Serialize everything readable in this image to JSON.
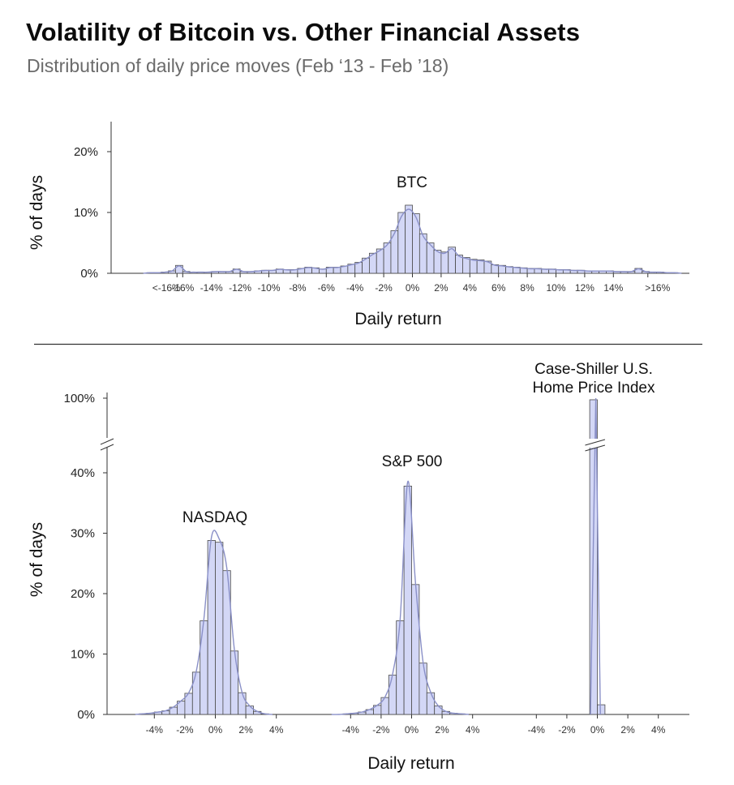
{
  "title": "Volatility of Bitcoin vs. Other Financial Assets",
  "subtitle": "Distribution of daily price moves (Feb ‘13 - Feb ’18)",
  "colors": {
    "bar_fill": "#d3d7f6",
    "bar_stroke": "#4a4a4a",
    "density_line": "#8a90c8",
    "axis": "#333333",
    "title": "#0b0b0b",
    "subtitle": "#6b6b6b"
  },
  "chart_data": [
    {
      "type": "bar",
      "panel": "top",
      "series_label": "BTC",
      "ylabel": "% of days",
      "xlabel": "Daily return",
      "y_ticks": [
        "0%",
        "10%",
        "20%"
      ],
      "ylim": [
        0,
        25
      ],
      "x_tick_labels": [
        "<-16%",
        "-16%",
        "-14%",
        "-12%",
        "-10%",
        "-8%",
        "-6%",
        "-4%",
        "-2%",
        "0%",
        "2%",
        "4%",
        "6%",
        "8%",
        "10%",
        "12%",
        "14%",
        ">16%"
      ],
      "bin_width": 0.5,
      "bin_centers": [
        -18.75,
        -18.25,
        -17.75,
        -17.25,
        -16.75,
        -16.25,
        -15.75,
        -15.25,
        -14.75,
        -14.25,
        -13.75,
        -13.25,
        -12.75,
        -12.25,
        -11.75,
        -11.25,
        -10.75,
        -10.25,
        -9.75,
        -9.25,
        -8.75,
        -8.25,
        -7.75,
        -7.25,
        -6.75,
        -6.25,
        -5.75,
        -5.25,
        -4.75,
        -4.25,
        -3.75,
        -3.25,
        -2.75,
        -2.25,
        -1.75,
        -1.25,
        -0.75,
        -0.25,
        0.25,
        0.75,
        1.25,
        1.75,
        2.25,
        2.75,
        3.25,
        3.75,
        4.25,
        4.75,
        5.25,
        5.75,
        6.25,
        6.75,
        7.25,
        7.75,
        8.25,
        8.75,
        9.25,
        9.75,
        10.25,
        10.75,
        11.25,
        11.75,
        12.25,
        12.75,
        13.25,
        13.75,
        14.25,
        14.75,
        15.25,
        15.75,
        16.25,
        16.75,
        17.25,
        17.75,
        18.25,
        18.75
      ],
      "values": [
        0,
        0.1,
        0.1,
        0.2,
        0.4,
        1.3,
        0.3,
        0.2,
        0.2,
        0.2,
        0.3,
        0.3,
        0.3,
        0.7,
        0.3,
        0.3,
        0.4,
        0.5,
        0.5,
        0.7,
        0.6,
        0.6,
        0.8,
        1.0,
        0.9,
        0.7,
        1.0,
        1.0,
        1.2,
        1.5,
        1.8,
        2.5,
        3.3,
        4.0,
        5.0,
        7.0,
        10.0,
        11.2,
        9.8,
        6.5,
        5.0,
        3.8,
        3.5,
        4.3,
        3.0,
        2.6,
        2.3,
        2.2,
        2.0,
        1.4,
        1.3,
        1.1,
        1.0,
        0.9,
        0.8,
        0.8,
        0.7,
        0.7,
        0.6,
        0.6,
        0.5,
        0.5,
        0.4,
        0.4,
        0.4,
        0.4,
        0.3,
        0.3,
        0.3,
        0.8,
        0.3,
        0.2,
        0.2,
        0.1,
        0.1,
        0
      ]
    },
    {
      "type": "bar",
      "panel": "bottom",
      "ylabel": "% of days",
      "xlabel": "Daily return",
      "y_ticks": [
        "0%",
        "10%",
        "20%",
        "30%",
        "40%",
        "100%"
      ],
      "y_axis_break": true,
      "ylim": [
        0,
        100
      ],
      "x_tick_labels": [
        "-4%",
        "-2%",
        "0%",
        "2%",
        "4%"
      ],
      "bin_width": 0.5,
      "series": [
        {
          "name": "NASDAQ",
          "bin_centers": [
            -4.75,
            -4.25,
            -3.75,
            -3.25,
            -2.75,
            -2.25,
            -1.75,
            -1.25,
            -0.75,
            -0.25,
            0.25,
            0.75,
            1.25,
            1.75,
            2.25,
            2.75,
            3.25
          ],
          "values": [
            0.1,
            0.2,
            0.4,
            0.6,
            1.2,
            2.2,
            3.5,
            7.0,
            15.5,
            28.8,
            28.5,
            23.8,
            10.5,
            3.6,
            1.4,
            0.5,
            0.1
          ]
        },
        {
          "name": "S&P 500",
          "bin_centers": [
            -4.75,
            -4.25,
            -3.75,
            -3.25,
            -2.75,
            -2.25,
            -1.75,
            -1.25,
            -0.75,
            -0.25,
            0.25,
            0.75,
            1.25,
            1.75,
            2.25,
            2.75,
            3.25
          ],
          "values": [
            0,
            0.1,
            0.2,
            0.4,
            0.8,
            1.5,
            2.8,
            6.5,
            15.5,
            37.8,
            21.5,
            8.5,
            3.6,
            1.4,
            0.5,
            0.2,
            0.1
          ]
        },
        {
          "name": "Case-Shiller U.S.\nHome Price Index",
          "bin_centers": [
            -0.25,
            0.25
          ],
          "values": [
            98.0,
            1.6
          ]
        }
      ]
    }
  ]
}
